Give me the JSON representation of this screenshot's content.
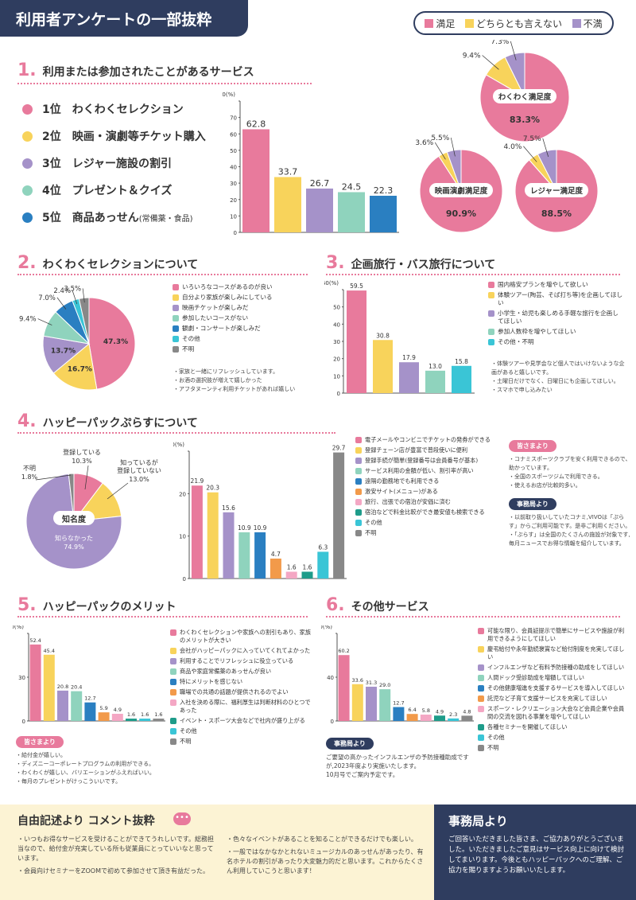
{
  "header": {
    "title": "利用者アンケートの一部抜粋"
  },
  "legend_top": {
    "items": [
      {
        "label": "満足",
        "color": "#e87a9c"
      },
      {
        "label": "どちらとも言えない",
        "color": "#f8d35b"
      },
      {
        "label": "不満",
        "color": "#a592c9"
      }
    ]
  },
  "sec1": {
    "num": "1.",
    "title": "利用または参加されたことがあるサービス",
    "ranks": [
      {
        "label": "1位　わくわくセレクション",
        "note": "",
        "color": "#e87a9c"
      },
      {
        "label": "2位　映画・演劇等チケット購入",
        "note": "",
        "color": "#f8d35b"
      },
      {
        "label": "3位　レジャー施設の割引",
        "note": "",
        "color": "#a592c9"
      },
      {
        "label": "4位　プレゼント＆クイズ",
        "note": "",
        "color": "#8fd3bd"
      },
      {
        "label": "5位　商品あっせん",
        "note": "(常備薬・食品)",
        "color": "#2a7fc1"
      }
    ]
  },
  "satisfaction": [
    {
      "label": "わくわく満足度",
      "value_text": "83.3%",
      "data": [
        83.3,
        9.4,
        7.3
      ],
      "labels": [
        "83.3%",
        "9.4%",
        "7.3%"
      ]
    },
    {
      "label": "映画演劇満足度",
      "value_text": "90.9%",
      "data": [
        90.9,
        3.6,
        5.5
      ],
      "labels": [
        "90.9%",
        "3.6%",
        "5.5%"
      ]
    },
    {
      "label": "レジャー満足度",
      "value_text": "88.5%",
      "data": [
        88.5,
        4.0,
        7.5
      ],
      "labels": [
        "88.5%",
        "4.0%",
        "7.5%"
      ]
    }
  ],
  "sec2": {
    "num": "2.",
    "title": "わくわくセレクションについて",
    "legend": [
      {
        "label": "いろいろなコースがあるのが良い",
        "color": "#e87a9c"
      },
      {
        "label": "自分より家族が楽しみにしている",
        "color": "#f8d35b"
      },
      {
        "label": "映画チケットが楽しみだ",
        "color": "#a592c9"
      },
      {
        "label": "参加したいコースがない",
        "color": "#8fd3bd"
      },
      {
        "label": "観劇・コンサートが楽しみだ",
        "color": "#2a7fc1"
      },
      {
        "label": "その他",
        "color": "#3ac5d6"
      },
      {
        "label": "不明",
        "color": "#888888"
      }
    ],
    "notes": [
      "・家族と一緒にリフレッシュしています。",
      "・お酒の選択肢が増えて嬉しかった",
      "・アフタヌーンティ利用チケットがあれば嬉しい"
    ]
  },
  "sec3": {
    "num": "3.",
    "title": "企画旅行・バス旅行について",
    "legend": [
      {
        "label": "国内格安プランを増やして欲しい",
        "color": "#e87a9c"
      },
      {
        "label": "体験ツアー(陶芸、そば打ち等)を企画してほしい",
        "color": "#f8d35b"
      },
      {
        "label": "小学生・幼児も楽しめる手軽な旅行を企画してほしい",
        "color": "#a592c9"
      },
      {
        "label": "参加人数枠を増やしてほしい",
        "color": "#8fd3bd"
      },
      {
        "label": "その他・不明",
        "color": "#3ac5d6"
      }
    ],
    "notes": [
      "・体験ツアーや見学会など個人ではいけないような企画があると嬉しいです。",
      "・土曜日だけでなく、日曜日にも企画してほしい。",
      "・スマホで申し込みたい"
    ]
  },
  "sec4": {
    "num": "4.",
    "title": "ハッピーパックぷらすについて",
    "pie_center": "知名度",
    "pie_labels": {
      "unknown": "知らなかった",
      "registered": "登録している",
      "know_not_reg": "知っているが\n登録していない",
      "fumei": "不明"
    },
    "legend": [
      {
        "label": "電子メールやコンビニでチケットの発券ができる",
        "color": "#e87a9c"
      },
      {
        "label": "登録チェーン店が豊富で普段使いに便利",
        "color": "#f8d35b"
      },
      {
        "label": "登録手続が簡単(登録番号は会員番号が基本)",
        "color": "#a592c9"
      },
      {
        "label": "サービス利用の金額が低い、割引率が高い",
        "color": "#8fd3bd"
      },
      {
        "label": "遠隔の勤務地でも利用できる",
        "color": "#2a7fc1"
      },
      {
        "label": "激安サイト(メニュー)がある",
        "color": "#f29a4a"
      },
      {
        "label": "旅行、出張での宿泊が安価に済む",
        "color": "#f4a7c4"
      },
      {
        "label": "宿泊などで料金比較ができ最安値も検索できる",
        "color": "#1e9c8a"
      },
      {
        "label": "その他",
        "color": "#3ac5d6"
      },
      {
        "label": "不明",
        "color": "#888888"
      }
    ],
    "voice_title": "皆さまより",
    "voices": [
      "・コナミスポーツクラブを安く利用できるので、助かっています。",
      "・全国のスポーツジムで利用できる。",
      "・使えるお店が比較的多い。"
    ],
    "office_title": "事務局より",
    "office": [
      "・以前取り扱いしていたコナミ,VIVOは「ぷらす」からご利用可能です。是非ご利用ください。",
      "・「ぷらす」は全国のたくさんの施設が対象です, 毎月ニュースでお得な情報を紹介しています。"
    ]
  },
  "sec5": {
    "num": "5.",
    "title": "ハッピーパックのメリット",
    "legend": [
      {
        "label": "わくわくセレクションや家族への割引もあり、家族のメリットが大きい",
        "color": "#e87a9c"
      },
      {
        "label": "会社がハッピーパックに入っていてくれてよかった",
        "color": "#f8d35b"
      },
      {
        "label": "利用することでリフレッシュに役立っている",
        "color": "#a592c9"
      },
      {
        "label": "商品や家庭常備薬のあっせんが良い",
        "color": "#8fd3bd"
      },
      {
        "label": "特にメリットを感じない",
        "color": "#2a7fc1"
      },
      {
        "label": "職場での共通の話題が提供されるのでよい",
        "color": "#f29a4a"
      },
      {
        "label": "入社を決める際に、福利厚生は判断材料のひとつであった",
        "color": "#f4a7c4"
      },
      {
        "label": "イベント・スポーツ大会などで社内が盛り上がる",
        "color": "#1e9c8a"
      },
      {
        "label": "その他",
        "color": "#3ac5d6"
      },
      {
        "label": "不明",
        "color": "#888888"
      }
    ],
    "voice_title": "皆さまより",
    "voices": [
      "・給付金が嬉しい。",
      "・ディズニーコーポレートプログラムの利用ができる。",
      "・わくわくが嬉しい、バリエーションがふえればいい。",
      "・毎月のプレゼントがけっこういいです。"
    ]
  },
  "sec6": {
    "num": "6.",
    "title": "その他サービス",
    "legend": [
      {
        "label": "可能な限り、会員証提示で簡単にサービスや施設が利用できるようにしてほしい",
        "color": "#e87a9c"
      },
      {
        "label": "慶弔給付や永年勤続褒賞など給付制度を充実してほしい",
        "color": "#f8d35b"
      },
      {
        "label": "インフルエンザなど有料予防接種の助成をしてほしい",
        "color": "#a592c9"
      },
      {
        "label": "人間ドック受診助成を増額してほしい",
        "color": "#8fd3bd"
      },
      {
        "label": "その他健康増進を支援するサービスを導入してほしい",
        "color": "#2a7fc1"
      },
      {
        "label": "託児など子育て支援サービスを充実してほしい",
        "color": "#f29a4a"
      },
      {
        "label": "スポーツ・レクリエーション大会など会員企業や会員間の交流を図れる事業を増やしてほしい",
        "color": "#f4a7c4"
      },
      {
        "label": "各種セミナーを開催してほしい",
        "color": "#1e9c8a"
      },
      {
        "label": "その他",
        "color": "#3ac5d6"
      },
      {
        "label": "不明",
        "color": "#888888"
      }
    ],
    "office_title": "事務局より",
    "office": [
      "ご要望の高かったインフルエンザの予防接種助成ですが,2023年度より実施いたします。",
      "10月号でご案内予定です。"
    ]
  },
  "free_comments": {
    "title": "自由記述より コメント抜粋",
    "col1": [
      "・いつもお得なサービスを受けることができてうれしいです。総務担当なので、給付金が充実している所も従業員にとっていいなと思っています。",
      "・会員向けセミナーをZOOMで初めて参加させて頂き有益だった。"
    ],
    "col2": [
      "・色々なイベントがあることを知ることができるだけでも楽しい。",
      "・一般ではなかなかとれないミュージカルのあっせんがあったり、有名ホテルの割引があったり大変魅力的だと思います。これからたくさん利用していこうと思います！"
    ]
  },
  "office_final": {
    "title": "事務局より",
    "text": "ご回答いただきました皆さま、ご協力ありがとうございました。いただきましたご意見はサービス向上に向けて検討してまいります。今後ともハッピーパックへのご理解、ご協力を賜りますようお願いいたします。"
  },
  "chart_data": [
    {
      "id": "c1",
      "type": "bar",
      "categories": [
        "1位",
        "2位",
        "3位",
        "4位",
        "5位"
      ],
      "values": [
        62.8,
        33.7,
        26.7,
        24.5,
        22.3
      ],
      "ylim": [
        0,
        80
      ],
      "yticks": [
        0,
        10,
        20,
        30,
        40,
        50,
        60,
        70,
        80
      ],
      "unit": "(%)",
      "colors": [
        "#e87a9c",
        "#f8d35b",
        "#a592c9",
        "#8fd3bd",
        "#2a7fc1"
      ]
    },
    {
      "id": "c2",
      "type": "pie",
      "values": [
        47.3,
        16.7,
        13.7,
        9.4,
        7.0,
        2.4,
        3.5
      ],
      "labels": [
        "47.3%",
        "16.7%",
        "13.7%",
        "9.4%",
        "7.0%",
        "2.4%",
        "3.5%"
      ],
      "colors": [
        "#e87a9c",
        "#f8d35b",
        "#a592c9",
        "#8fd3bd",
        "#2a7fc1",
        "#3ac5d6",
        "#888888"
      ]
    },
    {
      "id": "c3",
      "type": "bar",
      "values": [
        59.5,
        30.8,
        17.9,
        13.0,
        15.8
      ],
      "ylim": [
        0,
        60
      ],
      "yticks": [
        0,
        10,
        20,
        30,
        40,
        50,
        60
      ],
      "unit": "(%)",
      "colors": [
        "#e87a9c",
        "#f8d35b",
        "#a592c9",
        "#8fd3bd",
        "#3ac5d6"
      ]
    },
    {
      "id": "c4pie",
      "type": "pie",
      "values": [
        74.9,
        10.3,
        13.0,
        1.8
      ],
      "labels": [
        "74.9%",
        "10.3%",
        "13.0%",
        "1.8%"
      ],
      "colors": [
        "#a592c9",
        "#e87a9c",
        "#f8d35b",
        "#888888"
      ]
    },
    {
      "id": "c4bar",
      "type": "bar",
      "values": [
        21.9,
        20.3,
        15.6,
        10.9,
        10.9,
        4.7,
        1.6,
        1.6,
        6.3,
        29.7
      ],
      "ylim": [
        0,
        30
      ],
      "yticks": [
        0,
        10,
        20,
        30
      ],
      "unit": "(%)",
      "colors": [
        "#e87a9c",
        "#f8d35b",
        "#a592c9",
        "#8fd3bd",
        "#2a7fc1",
        "#f29a4a",
        "#f4a7c4",
        "#1e9c8a",
        "#3ac5d6",
        "#888888"
      ]
    },
    {
      "id": "c5",
      "type": "bar",
      "values": [
        52.4,
        45.4,
        20.8,
        20.4,
        12.7,
        5.9,
        4.9,
        1.6,
        1.6,
        1.6
      ],
      "ylim": [
        0,
        60
      ],
      "yticks": [
        0,
        30,
        60
      ],
      "unit": "(%)",
      "colors": [
        "#e87a9c",
        "#f8d35b",
        "#a592c9",
        "#8fd3bd",
        "#2a7fc1",
        "#f29a4a",
        "#f4a7c4",
        "#1e9c8a",
        "#3ac5d6",
        "#888888"
      ]
    },
    {
      "id": "c6",
      "type": "bar",
      "values": [
        60.2,
        33.6,
        31.3,
        29.0,
        12.7,
        6.4,
        5.8,
        4.9,
        2.3,
        4.8
      ],
      "ylim": [
        0,
        80
      ],
      "yticks": [
        0,
        40,
        80
      ],
      "unit": "(%)",
      "colors": [
        "#e87a9c",
        "#f8d35b",
        "#a592c9",
        "#8fd3bd",
        "#2a7fc1",
        "#f29a4a",
        "#f4a7c4",
        "#1e9c8a",
        "#3ac5d6",
        "#888888"
      ]
    }
  ]
}
